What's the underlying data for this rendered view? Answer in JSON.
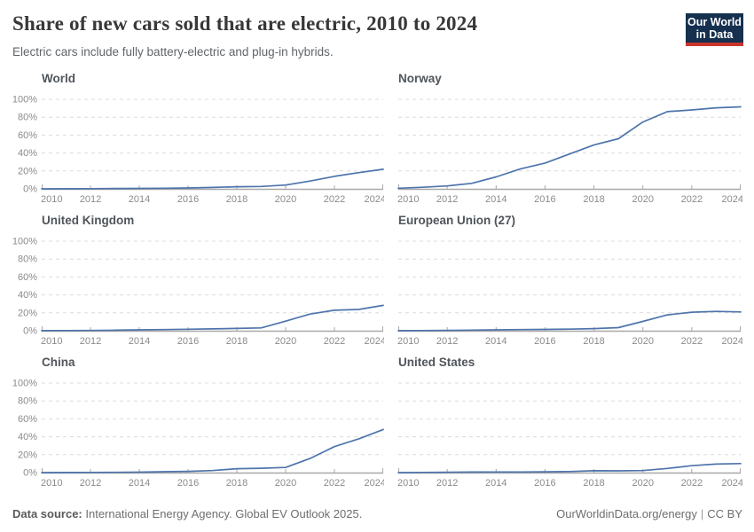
{
  "header": {
    "title": "Share of new cars sold that are electric, 2010 to 2024",
    "subtitle": "Electric cars include fully battery-electric and plug-in hybrids.",
    "logo": {
      "line1": "Our World",
      "line2": "in Data"
    }
  },
  "footer": {
    "source_label": "Data source:",
    "source_text": " International Energy Agency. Global EV Outlook 2025.",
    "url": "OurWorldinData.org/energy",
    "divider": "|",
    "license": "CC BY"
  },
  "colors": {
    "line": "#4e74ab",
    "logo_bg": "#16304f",
    "logo_accent": "#c9342b",
    "grid": "#dcdcdc",
    "axis": "#a8a8a8",
    "tick_text": "#8b8b8b"
  },
  "chart_data": {
    "type": "line",
    "title": "Share of new cars sold that are electric, 2010 to 2024",
    "xlabel": "",
    "ylabel": "",
    "x": [
      2010,
      2011,
      2012,
      2013,
      2014,
      2015,
      2016,
      2017,
      2018,
      2019,
      2020,
      2021,
      2022,
      2023,
      2024
    ],
    "x_tick_labels": [
      "2010",
      "2012",
      "2014",
      "2016",
      "2018",
      "2020",
      "2022",
      "2024"
    ],
    "y_tick_labels": [
      "0%",
      "20%",
      "40%",
      "60%",
      "80%",
      "100%"
    ],
    "ylim": [
      0,
      100
    ],
    "grid": true,
    "legend": "none",
    "facets": [
      {
        "title": "World",
        "slug": "world",
        "y_axis_labels": true,
        "values": [
          0.01,
          0.06,
          0.2,
          0.4,
          0.5,
          0.7,
          1.0,
          1.6,
          2.4,
          2.7,
          4.3,
          8.7,
          14.0,
          18.1,
          21.9
        ]
      },
      {
        "title": "Norway",
        "slug": "norway",
        "y_axis_labels": false,
        "values": [
          0.7,
          1.8,
          3.3,
          6.1,
          13.4,
          22.4,
          28.8,
          38.9,
          49.1,
          55.9,
          74.7,
          86.2,
          88.1,
          90.5,
          91.6
        ]
      },
      {
        "title": "United Kingdom",
        "slug": "united-kingdom",
        "y_axis_labels": true,
        "values": [
          0.1,
          0.2,
          0.3,
          0.6,
          1.0,
          1.3,
          1.7,
          2.1,
          2.6,
          3.2,
          10.7,
          18.6,
          22.9,
          23.8,
          28.3
        ]
      },
      {
        "title": "European Union (27)",
        "slug": "european-union-27",
        "y_axis_labels": false,
        "values": [
          0.1,
          0.2,
          0.4,
          0.7,
          1.0,
          1.3,
          1.5,
          1.8,
          2.4,
          3.5,
          10.4,
          17.7,
          20.7,
          21.6,
          21.0
        ]
      },
      {
        "title": "China",
        "slug": "china",
        "y_axis_labels": true,
        "values": [
          0.0,
          0.1,
          0.2,
          0.3,
          0.5,
          1.0,
          1.4,
          2.3,
          4.4,
          4.9,
          5.7,
          15.7,
          29.0,
          37.7,
          48.1
        ]
      },
      {
        "title": "United States",
        "slug": "united-states",
        "y_axis_labels": false,
        "values": [
          0.0,
          0.2,
          0.4,
          0.6,
          0.7,
          0.7,
          0.9,
          1.2,
          2.1,
          2.0,
          2.3,
          4.7,
          7.7,
          9.5,
          10.1
        ]
      }
    ]
  }
}
